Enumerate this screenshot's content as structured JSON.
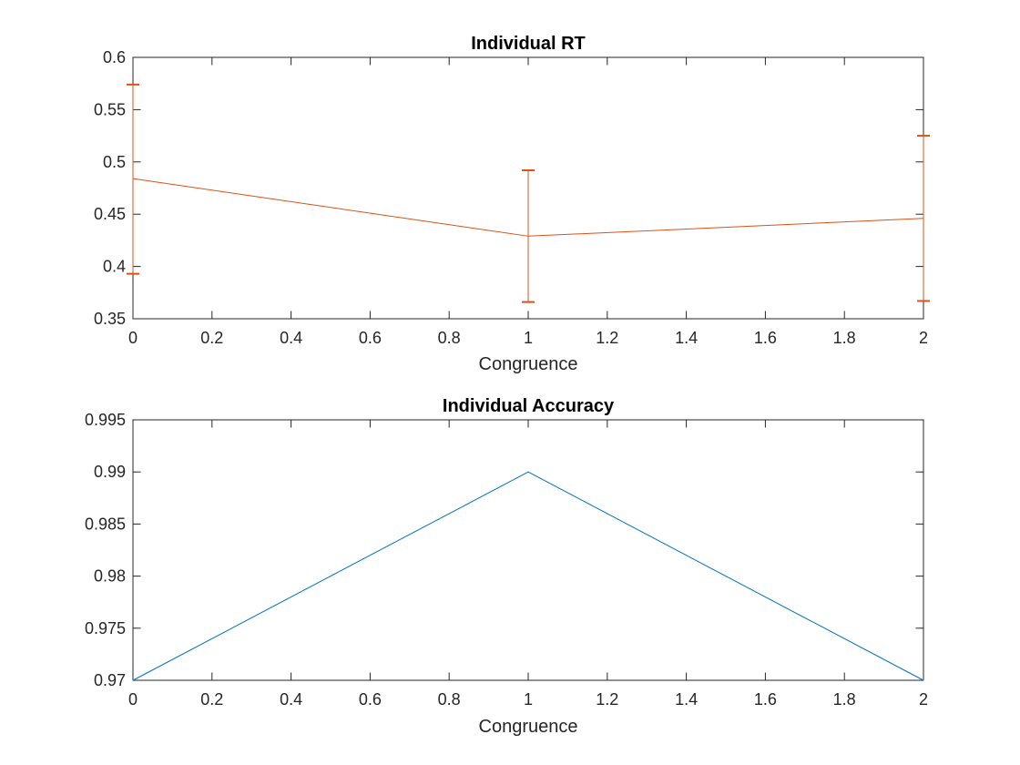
{
  "chart_data": [
    {
      "type": "line",
      "title": "Individual RT",
      "xlabel": "Congruence",
      "ylabel": "",
      "xlim": [
        0,
        2
      ],
      "ylim": [
        0.35,
        0.6
      ],
      "xticks": [
        "0",
        "0.2",
        "0.4",
        "0.6",
        "0.8",
        "1",
        "1.2",
        "1.4",
        "1.6",
        "1.8",
        "2"
      ],
      "yticks": [
        "0.35",
        "0.4",
        "0.45",
        "0.5",
        "0.55",
        "0.6"
      ],
      "grid": false,
      "series": [
        {
          "x": [
            0,
            1,
            2
          ],
          "y": [
            0.484,
            0.429,
            0.446
          ],
          "error_low": [
            0.393,
            0.366,
            0.367
          ],
          "error_high": [
            0.574,
            0.492,
            0.525
          ],
          "color": "#D95319"
        }
      ]
    },
    {
      "type": "line",
      "title": "Individual Accuracy",
      "xlabel": "Congruence",
      "ylabel": "",
      "xlim": [
        0,
        2
      ],
      "ylim": [
        0.97,
        0.995
      ],
      "xticks": [
        "0",
        "0.2",
        "0.4",
        "0.6",
        "0.8",
        "1",
        "1.2",
        "1.4",
        "1.6",
        "1.8",
        "2"
      ],
      "yticks": [
        "0.97",
        "0.975",
        "0.98",
        "0.985",
        "0.99",
        "0.995"
      ],
      "grid": false,
      "series": [
        {
          "x": [
            0,
            1,
            2
          ],
          "y": [
            0.97,
            0.99,
            0.97
          ],
          "color": "#0072BD"
        }
      ]
    }
  ]
}
